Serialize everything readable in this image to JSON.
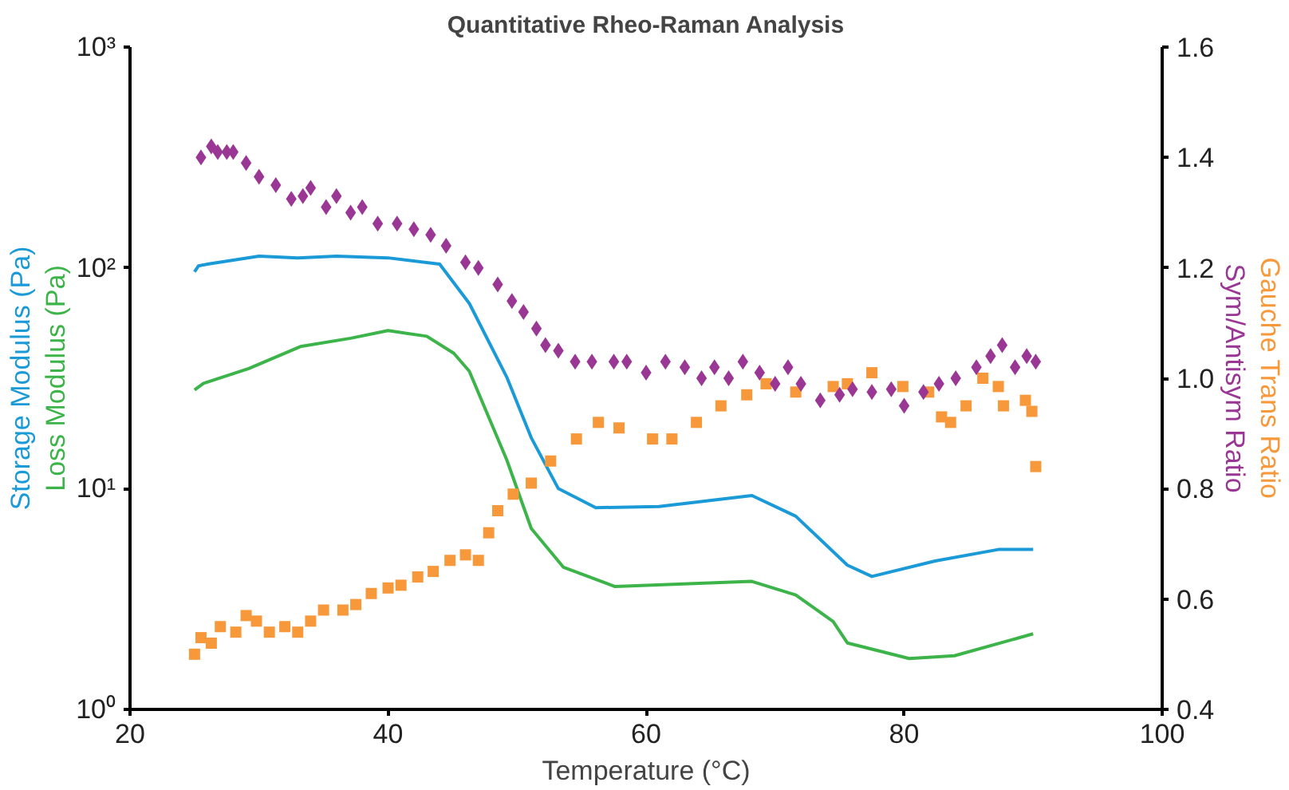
{
  "chart_data": {
    "type": "line",
    "title": "Quantitative Rheo-Raman Analysis",
    "xlabel": "Temperature (°C)",
    "xlim": [
      20,
      100
    ],
    "xticks": [
      20,
      40,
      60,
      80,
      100
    ],
    "ylim": [
      1,
      1000
    ],
    "yticks": [
      {
        "value": 1,
        "label": "10⁰"
      },
      {
        "value": 10,
        "label": "10¹"
      },
      {
        "value": 100,
        "label": "10²"
      },
      {
        "value": 1000,
        "label": "10³"
      }
    ],
    "log": "y",
    "y2lim": [
      0.4,
      1.6
    ],
    "y2ticks": [
      {
        "value": 0.4,
        "label": "0.4"
      },
      {
        "value": 0.6,
        "label": "0.6"
      },
      {
        "value": 0.8,
        "label": "0.8"
      },
      {
        "value": 1.0,
        "label": "1.0"
      },
      {
        "value": 1.2,
        "label": "1.2"
      },
      {
        "value": 1.4,
        "label": "1.4"
      },
      {
        "value": 1.6,
        "label": "1.6"
      }
    ],
    "grid": false,
    "series": [
      {
        "name": "Storage Modulus (Pa)",
        "color": "#1a9ad6",
        "line_style": "solid",
        "x": [
          25,
          25.3,
          26,
          30,
          33,
          36,
          40,
          44,
          46.3,
          49.2,
          51.1,
          53.2,
          56.1,
          61,
          68.2,
          71.6,
          75.6,
          77.5,
          82.4,
          87.3,
          90
        ],
        "values": [
          96,
          102,
          104,
          113,
          111,
          113,
          111,
          104,
          69,
          32,
          17,
          10,
          8.2,
          8.3,
          9.3,
          7.5,
          4.5,
          4.0,
          4.7,
          5.3,
          5.3
        ]
      },
      {
        "name": "Loss Modulus (Pa)",
        "color": "#3cb44a",
        "line_style": "solid",
        "x": [
          25,
          25.7,
          29.2,
          33.2,
          37.1,
          40,
          43,
          45.1,
          46.3,
          49.2,
          51.1,
          53.6,
          57.6,
          68.2,
          71.6,
          74.5,
          75.6,
          80.4,
          83.9,
          90
        ],
        "values": [
          28,
          30,
          35,
          44,
          48,
          52,
          49,
          41,
          34,
          13.5,
          6.6,
          4.4,
          3.6,
          3.8,
          3.3,
          2.5,
          2.0,
          1.7,
          1.75,
          2.2
        ]
      },
      {
        "name": "Gauche Trans Ratio",
        "type": "scatter",
        "axis": "y2",
        "marker": "square",
        "color": "#f7993a",
        "x": [
          25,
          25.5,
          26.3,
          27,
          28.2,
          29,
          29.8,
          30.8,
          32,
          33,
          34,
          35,
          36.5,
          37.5,
          38.7,
          40,
          41,
          42.3,
          43.5,
          44.8,
          46,
          47,
          47.8,
          48.5,
          49.7,
          51.1,
          52.6,
          54.6,
          56.3,
          57.9,
          60.5,
          62,
          63.9,
          65.8,
          67.8,
          69.3,
          71.6,
          74.5,
          75.6,
          77.5,
          79.9,
          81.9,
          82.9,
          83.6,
          84.8,
          86.1,
          87.3,
          87.7,
          89.4,
          89.9,
          90.2
        ],
        "values": [
          0.5,
          0.53,
          0.52,
          0.55,
          0.54,
          0.57,
          0.56,
          0.54,
          0.55,
          0.54,
          0.56,
          0.58,
          0.58,
          0.59,
          0.61,
          0.62,
          0.625,
          0.64,
          0.65,
          0.67,
          0.68,
          0.67,
          0.72,
          0.76,
          0.79,
          0.81,
          0.85,
          0.89,
          0.92,
          0.91,
          0.89,
          0.89,
          0.92,
          0.95,
          0.97,
          0.99,
          0.975,
          0.985,
          0.99,
          1.01,
          0.985,
          0.975,
          0.93,
          0.92,
          0.95,
          1.0,
          0.985,
          0.95,
          0.96,
          0.94,
          0.84
        ]
      },
      {
        "name": "Sym/Antisym Ratio",
        "type": "scatter",
        "axis": "y2",
        "marker": "diamond",
        "color": "#9a3794",
        "x": [
          25.5,
          26.3,
          26.8,
          27.5,
          28,
          29,
          30,
          31.3,
          32.5,
          33.4,
          34,
          35.2,
          36,
          37.1,
          38,
          39.2,
          40.7,
          42,
          43.3,
          44.5,
          46,
          47,
          48.5,
          49.6,
          50.5,
          51.5,
          52.2,
          53.2,
          54.5,
          55.8,
          57.5,
          58.5,
          60,
          61.5,
          63,
          64.3,
          65.3,
          66.4,
          67.5,
          68.8,
          70,
          71,
          72,
          73.5,
          75,
          76,
          77.5,
          79,
          80,
          81.5,
          82.7,
          84,
          85.6,
          86.7,
          87.6,
          88.6,
          89.5,
          90.2
        ],
        "values": [
          1.4,
          1.42,
          1.41,
          1.41,
          1.41,
          1.39,
          1.365,
          1.35,
          1.325,
          1.33,
          1.345,
          1.31,
          1.33,
          1.3,
          1.31,
          1.28,
          1.28,
          1.27,
          1.26,
          1.24,
          1.21,
          1.2,
          1.17,
          1.14,
          1.12,
          1.09,
          1.06,
          1.05,
          1.03,
          1.03,
          1.03,
          1.03,
          1.01,
          1.03,
          1.02,
          1.0,
          1.02,
          1.0,
          1.03,
          1.01,
          0.99,
          1.02,
          0.99,
          0.96,
          0.97,
          0.98,
          0.975,
          0.98,
          0.95,
          0.975,
          0.99,
          1.0,
          1.02,
          1.04,
          1.06,
          1.02,
          1.04,
          1.03
        ]
      }
    ]
  }
}
